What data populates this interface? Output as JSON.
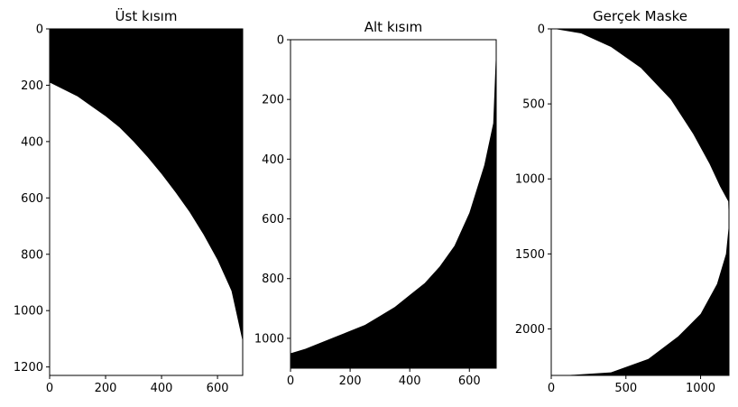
{
  "chart_data": [
    {
      "type": "heatmap",
      "title": "Üst kısım",
      "colormap": "gray",
      "xlim": [
        0,
        690
      ],
      "ylim": [
        1230,
        0
      ],
      "xticks": [
        0,
        200,
        400,
        600
      ],
      "yticks": [
        0,
        200,
        400,
        600,
        800,
        1000,
        1200
      ],
      "boundary_side": "black-above",
      "boundary": [
        [
          0,
          190
        ],
        [
          50,
          215
        ],
        [
          100,
          240
        ],
        [
          150,
          275
        ],
        [
          200,
          310
        ],
        [
          250,
          350
        ],
        [
          300,
          400
        ],
        [
          350,
          455
        ],
        [
          400,
          515
        ],
        [
          450,
          580
        ],
        [
          500,
          650
        ],
        [
          550,
          730
        ],
        [
          600,
          820
        ],
        [
          650,
          930
        ],
        [
          690,
          1110
        ]
      ]
    },
    {
      "type": "heatmap",
      "title": "Alt kısım",
      "colormap": "gray",
      "xlim": [
        0,
        690
      ],
      "ylim": [
        1100,
        0
      ],
      "xticks": [
        0,
        200,
        400,
        600
      ],
      "yticks": [
        0,
        200,
        400,
        600,
        800,
        1000
      ],
      "boundary_side": "black-below",
      "boundary": [
        [
          0,
          1050
        ],
        [
          50,
          1035
        ],
        [
          100,
          1015
        ],
        [
          150,
          995
        ],
        [
          200,
          975
        ],
        [
          250,
          955
        ],
        [
          300,
          925
        ],
        [
          350,
          895
        ],
        [
          400,
          855
        ],
        [
          450,
          815
        ],
        [
          500,
          760
        ],
        [
          550,
          690
        ],
        [
          600,
          580
        ],
        [
          650,
          420
        ],
        [
          680,
          280
        ],
        [
          690,
          30
        ]
      ]
    },
    {
      "type": "heatmap",
      "title": "Gerçek Maske",
      "colormap": "gray",
      "xlim": [
        0,
        1190
      ],
      "ylim": [
        2310,
        0
      ],
      "xticks": [
        0,
        500,
        1000
      ],
      "yticks": [
        0,
        500,
        1000,
        1500,
        2000
      ],
      "boundary_side": "half-disk",
      "boundary": [
        [
          20,
          0
        ],
        [
          200,
          30
        ],
        [
          400,
          120
        ],
        [
          600,
          260
        ],
        [
          800,
          470
        ],
        [
          950,
          700
        ],
        [
          1060,
          900
        ],
        [
          1130,
          1050
        ],
        [
          1185,
          1150
        ],
        [
          1190,
          1300
        ],
        [
          1170,
          1500
        ],
        [
          1110,
          1700
        ],
        [
          1000,
          1900
        ],
        [
          850,
          2050
        ],
        [
          650,
          2200
        ],
        [
          400,
          2290
        ],
        [
          80,
          2310
        ]
      ]
    }
  ]
}
